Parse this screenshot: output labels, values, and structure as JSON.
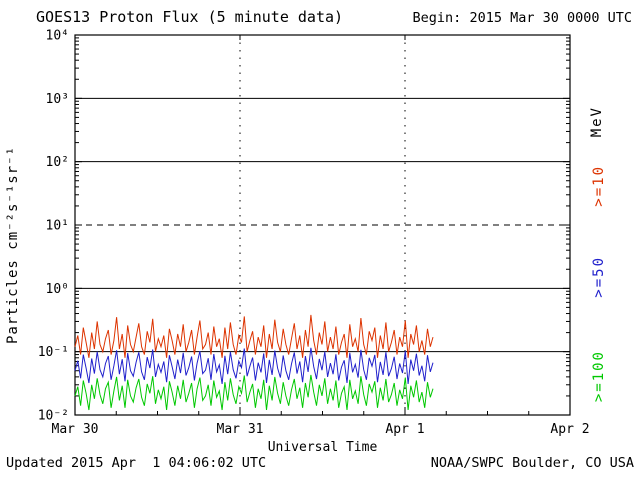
{
  "header": {
    "title": "GOES13 Proton Flux (5 minute data)",
    "begin": "Begin: 2015 Mar 30 0000 UTC"
  },
  "footer": {
    "updated": "Updated 2015 Apr  1 04:06:02 UTC",
    "credit": "NOAA/SWPC Boulder, CO USA"
  },
  "axes": {
    "y_label": "Particles cm⁻²s⁻¹sr⁻¹",
    "x_label": "Universal Time"
  },
  "right_labels": [
    {
      "text": "MeV",
      "color": "#000000"
    },
    {
      "text": ">=10",
      "color": "#dd3300"
    },
    {
      "text": ">=50",
      "color": "#2020cc"
    },
    {
      "text": ">=100",
      "color": "#00c800"
    }
  ],
  "chart_data": {
    "type": "line",
    "title": "GOES13 Proton Flux (5 minute data)",
    "xlabel": "Universal Time",
    "ylabel": "Particles cm⁻²s⁻¹sr⁻¹",
    "y_scale": "log",
    "ylim_exp": [
      -2,
      4
    ],
    "x_range_days": [
      0,
      3
    ],
    "x_ticks": [
      {
        "day": 0,
        "label": "Mar 30"
      },
      {
        "day": 1,
        "label": "Mar 31"
      },
      {
        "day": 2,
        "label": "Apr 1"
      },
      {
        "day": 3,
        "label": "Apr 2"
      }
    ],
    "y_ticks": [
      {
        "exp": 4,
        "label": "10⁴"
      },
      {
        "exp": 3,
        "label": "10³"
      },
      {
        "exp": 2,
        "label": "10²"
      },
      {
        "exp": 1,
        "label": "10¹"
      },
      {
        "exp": 0,
        "label": "10⁰"
      },
      {
        "exp": -1,
        "label": "10⁻¹"
      },
      {
        "exp": -2,
        "label": "10⁻²"
      }
    ],
    "grid": {
      "solid_hlines_exp": [
        3,
        2,
        0,
        -1
      ],
      "dashed_hlines_exp": [
        1
      ],
      "dotted_vlines_days": [
        1,
        2
      ]
    },
    "legend_position": "right",
    "data_start_day": 0,
    "data_end_day": 2.17,
    "paint_order": [
      1,
      2,
      0
    ],
    "series": [
      {
        "name": ">=10 MeV",
        "color": "#dd3300",
        "values": [
          0.12,
          0.18,
          0.09,
          0.24,
          0.14,
          0.08,
          0.2,
          0.11,
          0.3,
          0.13,
          0.1,
          0.16,
          0.22,
          0.09,
          0.15,
          0.35,
          0.11,
          0.19,
          0.08,
          0.26,
          0.13,
          0.1,
          0.17,
          0.28,
          0.12,
          0.09,
          0.21,
          0.14,
          0.33,
          0.1,
          0.16,
          0.12,
          0.18,
          0.08,
          0.23,
          0.15,
          0.09,
          0.19,
          0.12,
          0.27,
          0.1,
          0.14,
          0.22,
          0.09,
          0.17,
          0.31,
          0.11,
          0.13,
          0.2,
          0.09,
          0.25,
          0.12,
          0.16,
          0.08,
          0.24,
          0.11,
          0.29,
          0.13,
          0.09,
          0.18,
          0.14,
          0.36,
          0.1,
          0.15,
          0.21,
          0.09,
          0.17,
          0.12,
          0.26,
          0.08,
          0.19,
          0.11,
          0.32,
          0.14,
          0.1,
          0.23,
          0.13,
          0.09,
          0.16,
          0.28,
          0.11,
          0.18,
          0.08,
          0.22,
          0.12,
          0.38,
          0.15,
          0.09,
          0.2,
          0.13,
          0.3,
          0.1,
          0.17,
          0.11,
          0.25,
          0.09,
          0.14,
          0.19,
          0.08,
          0.27,
          0.12,
          0.16,
          0.1,
          0.34,
          0.13,
          0.09,
          0.21,
          0.15,
          0.24,
          0.08,
          0.18,
          0.11,
          0.29,
          0.1,
          0.14,
          0.22,
          0.09,
          0.17,
          0.12,
          0.31,
          0.08,
          0.19,
          0.13,
          0.26,
          0.1,
          0.15,
          0.09,
          0.23,
          0.12,
          0.17
        ]
      },
      {
        "name": ">=50 MeV",
        "color": "#2020cc",
        "values": [
          0.05,
          0.072,
          0.038,
          0.09,
          0.055,
          0.032,
          0.078,
          0.045,
          0.1,
          0.052,
          0.04,
          0.065,
          0.085,
          0.036,
          0.06,
          0.105,
          0.044,
          0.076,
          0.034,
          0.095,
          0.05,
          0.041,
          0.068,
          0.098,
          0.048,
          0.036,
          0.082,
          0.055,
          0.108,
          0.04,
          0.063,
          0.047,
          0.07,
          0.033,
          0.088,
          0.058,
          0.037,
          0.075,
          0.046,
          0.096,
          0.042,
          0.056,
          0.084,
          0.035,
          0.066,
          0.102,
          0.045,
          0.051,
          0.079,
          0.036,
          0.092,
          0.048,
          0.062,
          0.031,
          0.086,
          0.044,
          0.099,
          0.052,
          0.038,
          0.071,
          0.056,
          0.112,
          0.041,
          0.059,
          0.081,
          0.035,
          0.067,
          0.047,
          0.094,
          0.032,
          0.074,
          0.043,
          0.104,
          0.055,
          0.039,
          0.087,
          0.05,
          0.036,
          0.064,
          0.097,
          0.045,
          0.07,
          0.033,
          0.085,
          0.048,
          0.115,
          0.058,
          0.037,
          0.077,
          0.051,
          0.1,
          0.04,
          0.066,
          0.044,
          0.091,
          0.035,
          0.057,
          0.073,
          0.032,
          0.096,
          0.047,
          0.063,
          0.039,
          0.107,
          0.052,
          0.036,
          0.08,
          0.059,
          0.089,
          0.033,
          0.069,
          0.043,
          0.098,
          0.041,
          0.054,
          0.083,
          0.037,
          0.065,
          0.046,
          0.103,
          0.031,
          0.075,
          0.05,
          0.093,
          0.042,
          0.06,
          0.034,
          0.088,
          0.048,
          0.067
        ]
      },
      {
        "name": ">=100 MeV",
        "color": "#00c800",
        "values": [
          0.02,
          0.028,
          0.014,
          0.035,
          0.022,
          0.012,
          0.03,
          0.018,
          0.038,
          0.021,
          0.015,
          0.026,
          0.033,
          0.013,
          0.024,
          0.04,
          0.017,
          0.029,
          0.013,
          0.036,
          0.02,
          0.016,
          0.027,
          0.037,
          0.019,
          0.014,
          0.031,
          0.022,
          0.041,
          0.015,
          0.025,
          0.018,
          0.028,
          0.012,
          0.034,
          0.023,
          0.014,
          0.029,
          0.018,
          0.036,
          0.016,
          0.022,
          0.032,
          0.013,
          0.026,
          0.039,
          0.017,
          0.02,
          0.03,
          0.014,
          0.035,
          0.019,
          0.024,
          0.012,
          0.033,
          0.017,
          0.038,
          0.021,
          0.015,
          0.028,
          0.022,
          0.042,
          0.016,
          0.023,
          0.031,
          0.013,
          0.026,
          0.018,
          0.036,
          0.012,
          0.029,
          0.017,
          0.04,
          0.022,
          0.015,
          0.033,
          0.02,
          0.014,
          0.025,
          0.037,
          0.018,
          0.027,
          0.013,
          0.032,
          0.019,
          0.043,
          0.023,
          0.014,
          0.03,
          0.02,
          0.038,
          0.015,
          0.026,
          0.017,
          0.035,
          0.013,
          0.022,
          0.028,
          0.012,
          0.036,
          0.018,
          0.024,
          0.015,
          0.041,
          0.021,
          0.014,
          0.031,
          0.023,
          0.034,
          0.013,
          0.027,
          0.017,
          0.037,
          0.016,
          0.021,
          0.032,
          0.014,
          0.025,
          0.018,
          0.039,
          0.012,
          0.029,
          0.019,
          0.035,
          0.016,
          0.023,
          0.013,
          0.033,
          0.019,
          0.026
        ]
      }
    ]
  }
}
